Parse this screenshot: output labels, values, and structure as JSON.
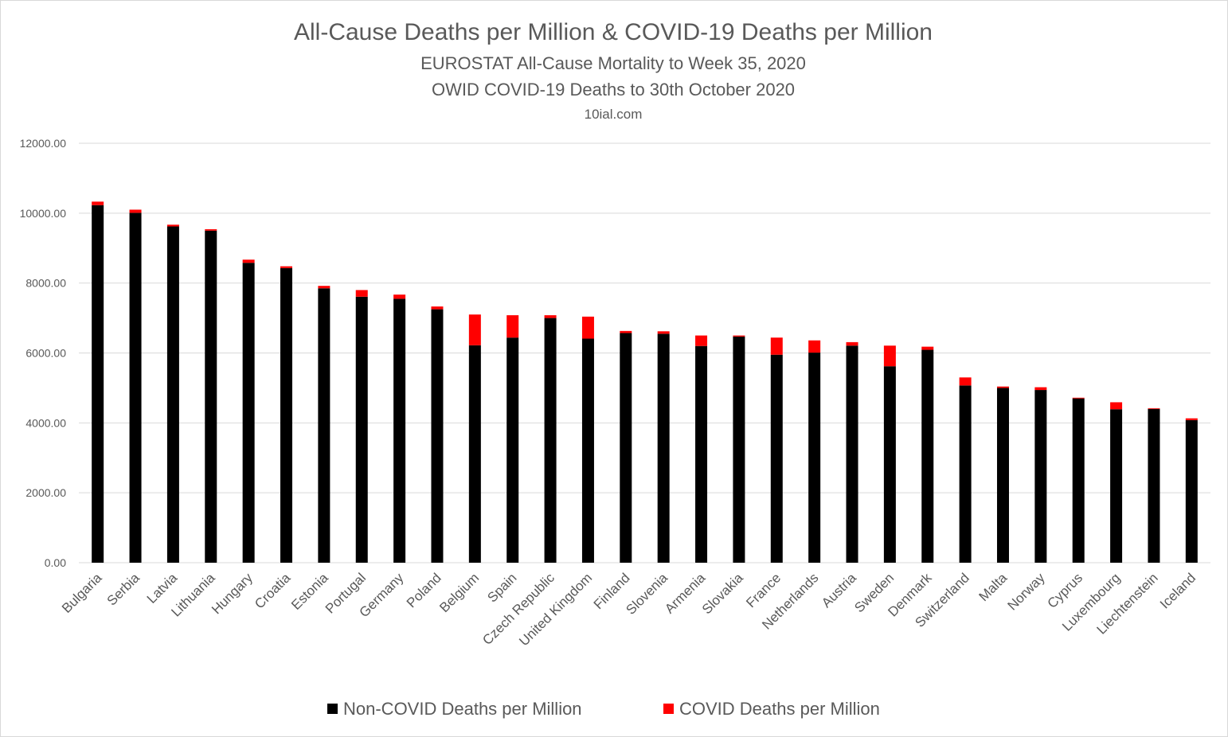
{
  "chart_data": {
    "type": "bar",
    "stacked": true,
    "title": "All-Cause Deaths per Million & COVID-19 Deaths per Million",
    "subtitle_lines": [
      "EUROSTAT All-Cause Mortality to Week 35, 2020",
      "OWID COVID-19 Deaths to 30th October 2020",
      "10ial.com"
    ],
    "ylim": [
      0,
      12000
    ],
    "yticks": [
      "0.00",
      "2000.00",
      "4000.00",
      "6000.00",
      "8000.00",
      "10000.00",
      "12000.00"
    ],
    "grid": true,
    "legend_position": "bottom",
    "categories": [
      "Bulgaria",
      "Serbia",
      "Latvia",
      "Lithuania",
      "Hungary",
      "Croatia",
      "Estonia",
      "Portugal",
      "Germany",
      "Poland",
      "Belgium",
      "Spain",
      "Czech Republic",
      "United Kingdom",
      "Finland",
      "Slovenia",
      "Armenia",
      "Slovakia",
      "France",
      "Netherlands",
      "Austria",
      "Sweden",
      "Denmark",
      "Switzerland",
      "Malta",
      "Norway",
      "Cyprus",
      "Luxembourg",
      "Liechtenstein",
      "Iceland"
    ],
    "series": [
      {
        "name": "Non-COVID Deaths per Million",
        "color": "#000000",
        "values": [
          10230,
          10010,
          9620,
          9500,
          8580,
          8430,
          7850,
          7610,
          7550,
          7250,
          6220,
          6440,
          7000,
          6410,
          6570,
          6550,
          6200,
          6470,
          5950,
          6010,
          6210,
          5620,
          6090,
          5070,
          5000,
          4940,
          4700,
          4390,
          4400,
          4080
        ]
      },
      {
        "name": "COVID Deaths per Million",
        "color": "#ff0000",
        "values": [
          100,
          90,
          50,
          40,
          90,
          50,
          70,
          190,
          120,
          80,
          880,
          640,
          80,
          630,
          60,
          70,
          300,
          30,
          490,
          350,
          100,
          590,
          90,
          230,
          40,
          80,
          20,
          200,
          20,
          50
        ]
      }
    ]
  }
}
